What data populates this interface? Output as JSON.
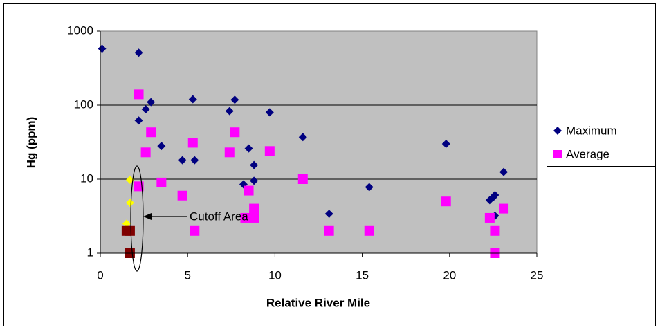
{
  "chart_data": {
    "type": "scatter",
    "x_label": "Relative River Mile",
    "y_label": "Hg (ppm)",
    "annotation": "Cutoff Area",
    "xlim": [
      0,
      25
    ],
    "xticks": [
      0,
      5,
      10,
      15,
      20,
      25
    ],
    "ylim": [
      1,
      1000
    ],
    "yticks": [
      1,
      10,
      100,
      1000
    ],
    "yscale": "log",
    "grid": true,
    "legend": "right",
    "series": [
      {
        "name": "Maximum",
        "color": "#000080",
        "marker": "diamond",
        "x": [
          0.1,
          2.2,
          2.2,
          2.6,
          2.9,
          3.5,
          4.7,
          5.3,
          5.4,
          7.4,
          7.7,
          8.2,
          8.5,
          8.8,
          8.8,
          9.7,
          11.6,
          13.1,
          15.4,
          19.8,
          22.3,
          22.5,
          22.6,
          22.6,
          23.1
        ],
        "values": [
          580,
          510,
          62,
          88,
          110,
          28,
          18,
          120,
          18,
          83,
          118,
          8.5,
          26,
          15.5,
          9.5,
          80,
          37,
          3.4,
          7.8,
          30,
          5.2,
          5.7,
          6.1,
          3.2,
          12.5
        ]
      },
      {
        "name": "Average",
        "color": "#ff00ff",
        "marker": "square",
        "x": [
          2.2,
          2.9,
          2.6,
          2.2,
          3.5,
          4.7,
          5.3,
          5.4,
          7.4,
          7.7,
          8.3,
          8.5,
          8.8,
          8.8,
          9.7,
          11.6,
          13.1,
          15.4,
          19.8,
          22.3,
          22.6,
          22.6,
          23.1
        ],
        "values": [
          140,
          43,
          23,
          8,
          9,
          6,
          31,
          2,
          23,
          43,
          3,
          7,
          4,
          3,
          24,
          10,
          2,
          2,
          5,
          3,
          2,
          1,
          4
        ]
      },
      {
        "color": "#ffff00",
        "marker": "diamond",
        "x": [
          1.7,
          1.7,
          1.5
        ],
        "values": [
          9.8,
          4.8,
          2.5
        ]
      },
      {
        "color": "#800000",
        "marker": "square",
        "x": [
          1.5,
          1.7,
          1.7
        ],
        "values": [
          2,
          2,
          1
        ]
      }
    ]
  }
}
